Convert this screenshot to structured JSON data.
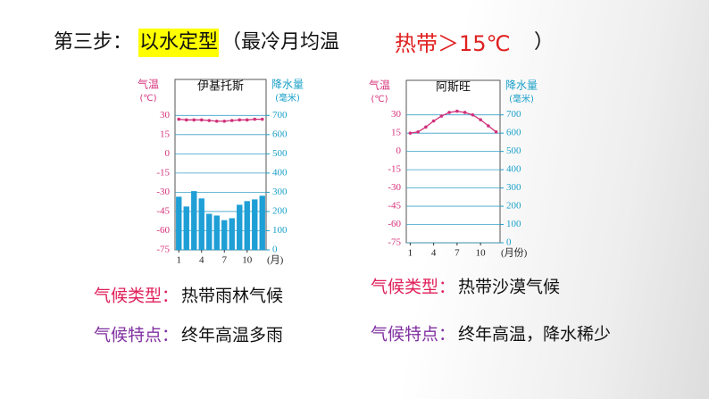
{
  "header": {
    "step": "第三步：",
    "method": "以水定型",
    "open": "（最冷月均温",
    "criterion": "热带＞15℃",
    "close": "）"
  },
  "chart_data": [
    {
      "type": "bar-line",
      "title": "伊基托斯",
      "y_label": "气温",
      "y_unit": "(℃)",
      "y2_label": "降水量",
      "y2_unit": "(毫米)",
      "x_unit": "(月)",
      "x": [
        1,
        2,
        3,
        4,
        5,
        6,
        7,
        8,
        9,
        10,
        11,
        12
      ],
      "xlim": [
        0.5,
        12.5
      ],
      "xticks": [
        1,
        4,
        7,
        10
      ],
      "ylim": [
        -75,
        52.5
      ],
      "yticks": [
        -75,
        -60,
        -45,
        -30,
        -15,
        0,
        15,
        30
      ],
      "y2lim": [
        0,
        850
      ],
      "y2ticks": [
        0,
        100,
        200,
        300,
        400,
        500,
        600,
        700
      ],
      "grid": true,
      "series": [
        {
          "name": "降水量",
          "kind": "bar",
          "axis": "y2",
          "color": "#1e9fd6",
          "values": [
            277,
            226,
            306,
            268,
            188,
            179,
            155,
            165,
            235,
            254,
            263,
            282
          ]
        },
        {
          "name": "气温",
          "kind": "line",
          "color": "#d0307a",
          "values": [
            27,
            26.5,
            26.5,
            26.5,
            26,
            25.5,
            25.5,
            26,
            26.5,
            26.5,
            27,
            27
          ]
        }
      ]
    },
    {
      "type": "bar-line",
      "title": "阿斯旺",
      "y_label": "气温",
      "y_unit": "(℃)",
      "y2_label": "降水量",
      "y2_unit": "(毫米)",
      "x_unit": "(月份)",
      "x": [
        1,
        2,
        3,
        4,
        5,
        6,
        7,
        8,
        9,
        10,
        11,
        12
      ],
      "xlim": [
        0.5,
        12.5
      ],
      "xticks": [
        1,
        4,
        7,
        10
      ],
      "ylim": [
        -75,
        52.5
      ],
      "yticks": [
        -75,
        -60,
        -45,
        -30,
        -15,
        0,
        15,
        30
      ],
      "y2lim": [
        0,
        850
      ],
      "y2ticks": [
        0,
        100,
        200,
        300,
        400,
        500,
        600,
        700
      ],
      "grid": true,
      "series": [
        {
          "name": "气温",
          "kind": "line",
          "color": "#d0307a",
          "values": [
            15,
            16,
            20,
            25,
            29,
            32,
            33,
            32,
            30,
            26,
            21,
            16
          ]
        }
      ]
    }
  ],
  "captions": [
    {
      "type_label": "气候类型：",
      "type": "热带雨林气候",
      "feature_label": "气候特点：",
      "feature": "终年高温多雨"
    },
    {
      "type_label": "气候类型：",
      "type": "热带沙漠气候",
      "feature_label": "气候特点：",
      "feature": "终年高温，降水稀少"
    }
  ]
}
